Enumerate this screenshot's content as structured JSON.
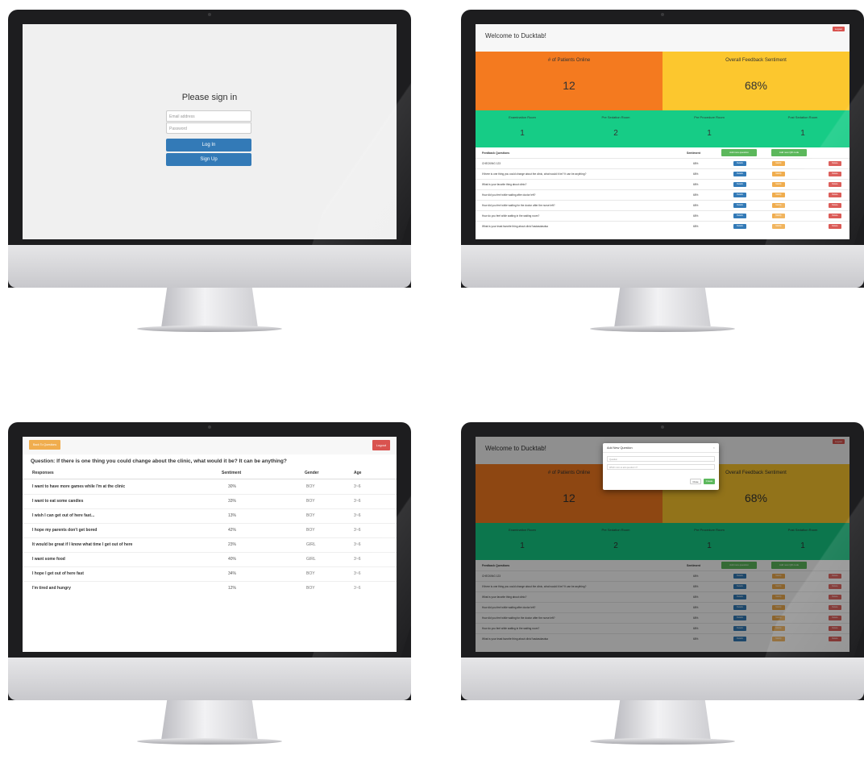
{
  "signin": {
    "title": "Please sign in",
    "email_placeholder": "Email address",
    "password_placeholder": "Password",
    "login_label": "Log In",
    "signup_label": "Sign Up"
  },
  "dashboard": {
    "title": "Welcome to Ducktab!",
    "logout_label": "Logout",
    "patients_online_label": "# of Patients Online",
    "patients_online_value": "12",
    "sentiment_label": "Overall Feedback Sentiment",
    "sentiment_value": "68%",
    "rooms": [
      {
        "label": "Examination Room",
        "value": "1"
      },
      {
        "label": "Pre Sedation Room",
        "value": "2"
      },
      {
        "label": "Pre Procedure Room",
        "value": "1"
      },
      {
        "label": "Post Sedation Room",
        "value": "1"
      }
    ],
    "feedback_header": "Feedback Questions",
    "sentiment_header": "Sentiment",
    "add_question_label": "Add new question",
    "add_qr_label": "Add new QR code",
    "details_label": "Details",
    "modify_label": "Modify",
    "delete_label": "Delete",
    "questions": [
      {
        "text": "CHECKING 123",
        "sentiment": "68%"
      },
      {
        "text": "If there is one thing you could change about the clinic, what would it be? It can be anything?",
        "sentiment": "68%"
      },
      {
        "text": "What is your favorite thing about clinic?",
        "sentiment": "68%"
      },
      {
        "text": "How did you feel while waiting after doctor left?",
        "sentiment": "68%"
      },
      {
        "text": "How did you feel while waiting for the doctor after the nurse left?",
        "sentiment": "68%"
      },
      {
        "text": "How do you feel while waiting in the waiting room?",
        "sentiment": "68%"
      },
      {
        "text": "What is your least favorite thing about clinic?asdasdasdsa",
        "sentiment": "68%"
      }
    ]
  },
  "responses": {
    "back_label": "Back To Questions",
    "logout_label": "Logout",
    "question": "Question: If there is one thing you could change about the clinic, what would it be? It can be anything?",
    "columns": [
      "Responses",
      "Sentiment",
      "Gender",
      "Age"
    ],
    "rows": [
      {
        "text": "I want to have more games while I'm at the clinic",
        "sentiment": "30%",
        "gender": "BOY",
        "age": "3~6"
      },
      {
        "text": "I want to eat some candies",
        "sentiment": "33%",
        "gender": "BOY",
        "age": "3~6"
      },
      {
        "text": "I wish I can get out of here fast...",
        "sentiment": "13%",
        "gender": "BOY",
        "age": "3~6"
      },
      {
        "text": "I hope my parents don't get bored",
        "sentiment": "42%",
        "gender": "BOY",
        "age": "3~6"
      },
      {
        "text": "It would be great if I know what time I get out of here",
        "sentiment": "23%",
        "gender": "GIRL",
        "age": "3~6"
      },
      {
        "text": "I want some food",
        "sentiment": "40%",
        "gender": "GIRL",
        "age": "3~6"
      },
      {
        "text": "I hope I get out of here fast",
        "sentiment": "34%",
        "gender": "BOY",
        "age": "3~6"
      },
      {
        "text": "I'm tired and hungry",
        "sentiment": "12%",
        "gender": "BOY",
        "age": "3~6"
      }
    ]
  },
  "modal": {
    "title": "Add New Question",
    "close_icon": "×",
    "question_placeholder": "Question",
    "which_room_placeholder": "Which room to ask question in?",
    "close_label": "Close",
    "create_label": "Create"
  },
  "colors": {
    "orange": "#f47a1f",
    "yellow": "#fcc72e",
    "green": "#16cc86",
    "primary": "#337ab7",
    "danger": "#d9534f",
    "warning": "#f0ad4e",
    "success": "#5cb85c"
  }
}
